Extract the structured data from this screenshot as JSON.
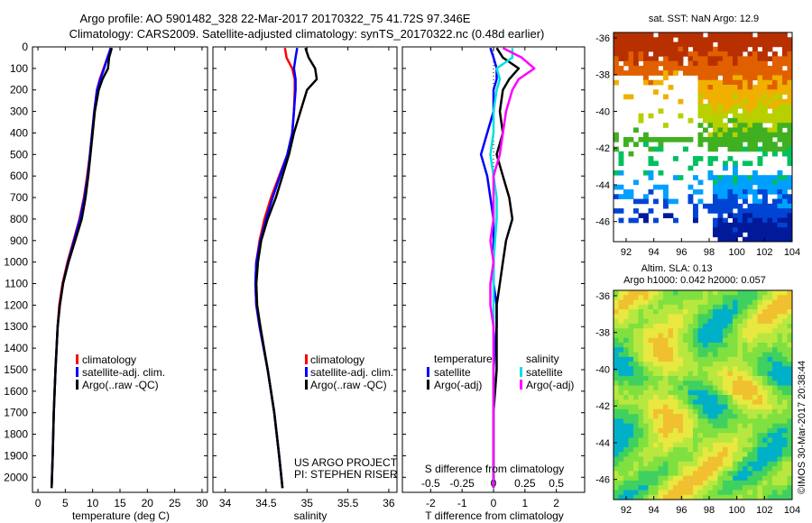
{
  "titles": {
    "line1": "Argo profile: AO 5901482_328 22-Mar-2017 20170322_75 41.72S 97.346E",
    "line2": "Climatology: CARS2009. Satellite-adjusted climatology: synTS_20170322.nc (0.48d earlier)"
  },
  "depth_ticks": [
    0,
    100,
    200,
    300,
    400,
    500,
    600,
    700,
    800,
    900,
    1000,
    1100,
    1200,
    1300,
    1400,
    1500,
    1600,
    1700,
    1800,
    1900,
    2000
  ],
  "colors": {
    "climatology": "#ff0000",
    "satellite": "#0000ff",
    "argo": "#000000",
    "salinity_satellite": "#00e0e0",
    "salinity_argo": "#ff00ff"
  },
  "chart_data": [
    {
      "type": "line",
      "id": "temperature",
      "xlabel": "temperature (deg C)",
      "xlim": [
        -1,
        31
      ],
      "ylim": [
        2070,
        0
      ],
      "xticks": [
        0,
        5,
        10,
        15,
        20,
        25,
        30
      ],
      "legend": [
        "climatology",
        "satellite-adj. clim.",
        "Argo(..raw -QC)"
      ],
      "depth": [
        5,
        50,
        100,
        150,
        200,
        300,
        400,
        500,
        600,
        700,
        800,
        900,
        1000,
        1100,
        1200,
        1300,
        1500,
        1700,
        1900,
        2050
      ],
      "series": [
        {
          "name": "climatology",
          "color": "#ff0000",
          "values": [
            13.4,
            12.7,
            12.0,
            11.3,
            10.8,
            10.3,
            9.9,
            9.5,
            9.0,
            8.4,
            7.6,
            6.5,
            5.4,
            4.5,
            3.9,
            3.6,
            3.2,
            2.9,
            2.7,
            2.5
          ]
        },
        {
          "name": "satellite-adj. clim.",
          "color": "#0000ff",
          "values": [
            13.3,
            12.7,
            12.1,
            11.4,
            10.8,
            10.3,
            9.9,
            9.5,
            9.1,
            8.5,
            7.7,
            6.6,
            5.5,
            4.6,
            4.0,
            3.6,
            3.2,
            2.9,
            2.7,
            2.5
          ]
        },
        {
          "name": "Argo(..raw -QC)",
          "color": "#000000",
          "values": [
            13.5,
            13.0,
            12.8,
            11.8,
            11.1,
            10.4,
            10.0,
            9.6,
            9.2,
            8.7,
            8.0,
            6.8,
            5.6,
            4.6,
            4.0,
            3.6,
            3.2,
            2.9,
            2.7,
            2.5
          ]
        }
      ]
    },
    {
      "type": "line",
      "id": "salinity",
      "xlabel": "salinity",
      "xlim": [
        33.85,
        36.1
      ],
      "ylim": [
        2070,
        0
      ],
      "xticks": [
        34,
        34.5,
        35,
        35.5,
        36
      ],
      "legend": [
        "climatology",
        "satellite-adj. clim.",
        "Argo(..raw -QC)"
      ],
      "depth": [
        5,
        50,
        100,
        150,
        200,
        300,
        400,
        500,
        600,
        700,
        800,
        900,
        1000,
        1100,
        1200,
        1300,
        1500,
        1700,
        1900,
        2050
      ],
      "series": [
        {
          "name": "climatology",
          "color": "#ff0000",
          "values": [
            34.73,
            34.75,
            34.82,
            34.85,
            34.85,
            34.84,
            34.82,
            34.76,
            34.66,
            34.56,
            34.48,
            34.42,
            34.38,
            34.37,
            34.38,
            34.42,
            34.52,
            34.6,
            34.66,
            34.7
          ]
        },
        {
          "name": "satellite-adj. clim.",
          "color": "#0000ff",
          "values": [
            34.88,
            34.86,
            34.84,
            34.86,
            34.86,
            34.84,
            34.82,
            34.76,
            34.67,
            34.58,
            34.5,
            34.43,
            34.38,
            34.37,
            34.38,
            34.42,
            34.52,
            34.6,
            34.66,
            34.7
          ]
        },
        {
          "name": "Argo(..raw -QC)",
          "color": "#000000",
          "values": [
            34.98,
            35.02,
            35.1,
            35.12,
            35.0,
            34.92,
            34.84,
            34.78,
            34.7,
            34.62,
            34.52,
            34.44,
            34.4,
            34.38,
            34.39,
            34.43,
            34.52,
            34.6,
            34.66,
            34.7
          ]
        }
      ]
    },
    {
      "type": "line",
      "id": "difference",
      "xlabel": "T difference from climatology",
      "top_xlabel": "S difference from climatology",
      "xlim": [
        -2.9,
        2.9
      ],
      "ylim": [
        2070,
        0
      ],
      "xticks": [
        -2,
        -1,
        0,
        1,
        2
      ],
      "top_ticks": [
        "-0.5",
        "-0.25",
        "0",
        "0.25",
        "0.5"
      ],
      "legend_titles": [
        "temperature",
        "salinity"
      ],
      "legend": [
        "satellite",
        "Argo(-adj)",
        "satellite",
        "Argo(-adj)"
      ],
      "depth": [
        5,
        50,
        100,
        150,
        200,
        300,
        400,
        500,
        600,
        700,
        800,
        900,
        1000,
        1100,
        1200,
        1300,
        1500,
        1700,
        1900,
        2050
      ],
      "series": [
        {
          "name": "temperature satellite",
          "color": "#0000ff",
          "values": [
            -0.1,
            0.0,
            0.1,
            0.1,
            0.0,
            0.0,
            -0.2,
            -0.4,
            -0.2,
            -0.1,
            0.0,
            0.0,
            0.0,
            0.0,
            0.1,
            0.1,
            0.0,
            0.0,
            0.0,
            0.0
          ]
        },
        {
          "name": "temperature Argo(-adj)",
          "color": "#000000",
          "values": [
            0.1,
            0.3,
            0.8,
            0.5,
            0.3,
            0.2,
            0.3,
            0.1,
            0.3,
            0.5,
            0.6,
            0.4,
            0.3,
            0.2,
            0.1,
            0.1,
            0.1,
            0.0,
            0.0,
            0.0
          ]
        },
        {
          "name": "salinity satellite",
          "color": "#00e0e0",
          "values": [
            0.6,
            0.6,
            0.1,
            0.2,
            0.1,
            0.0,
            0.0,
            -0.1,
            0.0,
            0.1,
            0.1,
            0.05,
            0.0,
            0.0,
            0.0,
            0.0,
            0.0,
            0.0,
            0.0,
            0.0
          ]
        },
        {
          "name": "salinity Argo(-adj)",
          "color": "#ff00ff",
          "values": [
            0.3,
            0.9,
            1.3,
            0.8,
            0.6,
            0.4,
            0.3,
            0.2,
            0.0,
            0.0,
            0.0,
            -0.1,
            0.0,
            -0.1,
            -0.1,
            0.0,
            0.0,
            0.0,
            0.0,
            0.0
          ]
        }
      ]
    }
  ],
  "annotations": {
    "project_line1": "US ARGO PROJECT",
    "project_line2": "PI: STEPHEN RISER"
  },
  "maps": {
    "sst": {
      "title": "sat. SST: NaN Argo: 12.9",
      "lat_ticks": [
        "-36",
        "-38",
        "-40",
        "-42",
        "-44",
        "-46"
      ],
      "lon_ticks": [
        "92",
        "94",
        "96",
        "98",
        "100",
        "102",
        "104"
      ]
    },
    "sla": {
      "title_line1": "Altim. SLA: 0.13",
      "title_line2": "Argo h1000: 0.042 h2000: 0.057",
      "lat_ticks": [
        "-36",
        "-38",
        "-40",
        "-42",
        "-44",
        "-46"
      ],
      "lon_ticks": [
        "92",
        "94",
        "96",
        "98",
        "100",
        "102",
        "104"
      ]
    },
    "credit": "©IMOS 30-Mar-2017 20:38:44"
  }
}
